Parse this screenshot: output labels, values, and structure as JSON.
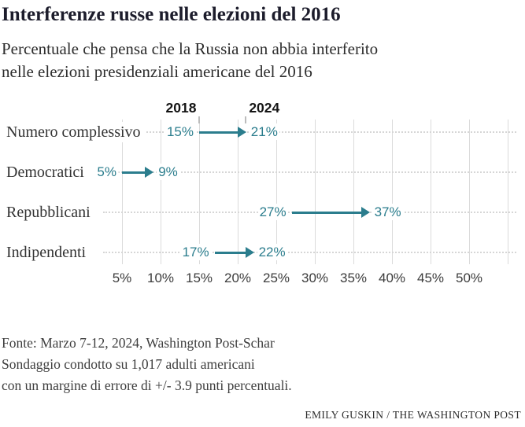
{
  "header": {
    "title": "Interferenze russe nelle elezioni del 2016",
    "subtitle_line1": "Percentuale che pensa che la Russia non abbia interferito",
    "subtitle_line2": "nelle elezioni presidenziali americane del 2016"
  },
  "chart_data": {
    "type": "arrow",
    "description": "Dumbbell arrow chart showing change in percentage from 2018 to 2024 per political group",
    "col_labels": [
      "2018",
      "2024"
    ],
    "categories": [
      "Numero complessivo",
      "Democratici",
      "Repubblicani",
      "Indipendenti"
    ],
    "series": [
      {
        "name": "2018",
        "values": [
          15,
          5,
          27,
          17
        ]
      },
      {
        "name": "2024",
        "values": [
          21,
          9,
          37,
          22
        ]
      }
    ],
    "value_suffix": "%",
    "x_tick_values": [
      5,
      10,
      15,
      20,
      25,
      30,
      35,
      40,
      45,
      50
    ],
    "x_grid_values": [
      5,
      10,
      15,
      20,
      25,
      30,
      35,
      40,
      45,
      50,
      55
    ],
    "x_tick_labels": [
      "5%",
      "10%",
      "15%",
      "20%",
      "25%",
      "30%",
      "35%",
      "40%",
      "45%",
      "50%"
    ],
    "xlim": [
      2.5,
      56
    ],
    "grid": true,
    "accent_color": "#2b7d8d",
    "gridline_color": "#dbdbdb",
    "row_label_color": "#333333",
    "legend_position": "column headers above first row"
  },
  "footer": {
    "lines": [
      "Fonte: Marzo 7-12, 2024, Washington Post-Schar",
      "Sondaggio condotto su 1,017 adulti americani",
      "con un margine di errore di +/- 3.9 punti percentuali."
    ],
    "credit": "EMILY GUSKIN / THE WASHINGTON POST"
  }
}
